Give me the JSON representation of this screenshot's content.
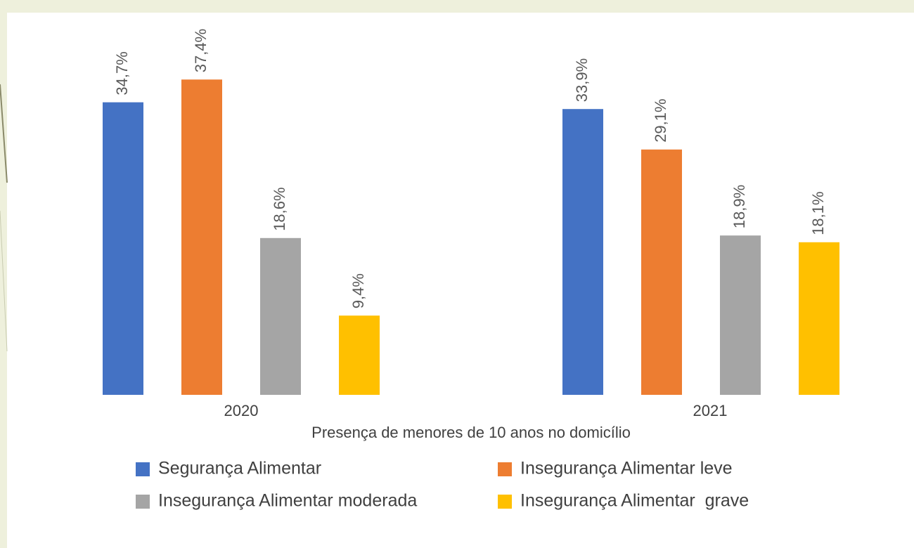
{
  "chart_data": {
    "type": "bar",
    "categories": [
      "2020",
      "2021"
    ],
    "x_label": "Presença de menores de 10 anos no domicílio",
    "series": [
      {
        "name": "Segurança Alimentar",
        "color": "#4472c4",
        "values": [
          34.7,
          33.9
        ],
        "value_labels": [
          "34,7%",
          "33,9%"
        ]
      },
      {
        "name": "Insegurança Alimentar leve",
        "color": "#ed7d31",
        "values": [
          37.4,
          29.1
        ],
        "value_labels": [
          "37,4%",
          "29,1%"
        ]
      },
      {
        "name": "Insegurança Alimentar moderada",
        "color": "#a5a5a5",
        "values": [
          18.6,
          18.9
        ],
        "value_labels": [
          "18,6%",
          "18,9%"
        ]
      },
      {
        "name": "Insegurança Alimentar  grave",
        "color": "#ffc000",
        "values": [
          9.4,
          18.1
        ],
        "value_labels": [
          "9,4%",
          "18,1%"
        ]
      }
    ],
    "legend": "bottom"
  }
}
